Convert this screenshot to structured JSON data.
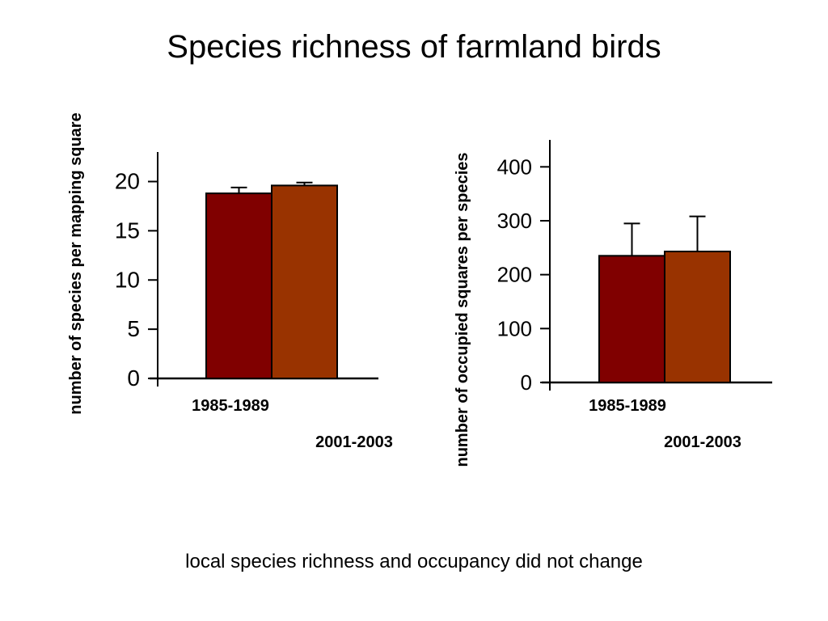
{
  "slide": {
    "title": "Species richness of farmland birds",
    "footer": "local species richness and occupancy did not change"
  },
  "colors": {
    "series_1985": "#800000",
    "series_2001": "#993300",
    "axis": "#000000"
  },
  "chart_data": [
    {
      "type": "bar",
      "ylabel": "number of species per mapping square",
      "ylim": [
        0,
        23
      ],
      "yticks": [
        0,
        5,
        10,
        15,
        20
      ],
      "legend_labels": [
        "1985-1989",
        "2001-2003"
      ],
      "series": [
        {
          "name": "1985-1989",
          "value": 18.8,
          "error": 0.6
        },
        {
          "name": "2001-2003",
          "value": 19.6,
          "error": 0.3
        }
      ]
    },
    {
      "type": "bar",
      "ylabel": "number of occupied squares per species",
      "ylim": [
        0,
        450
      ],
      "yticks": [
        0,
        100,
        200,
        300,
        400
      ],
      "legend_labels": [
        "1985-1989",
        "2001-2003"
      ],
      "series": [
        {
          "name": "1985-1989",
          "value": 235,
          "error": 60
        },
        {
          "name": "2001-2003",
          "value": 243,
          "error": 65
        }
      ]
    }
  ]
}
